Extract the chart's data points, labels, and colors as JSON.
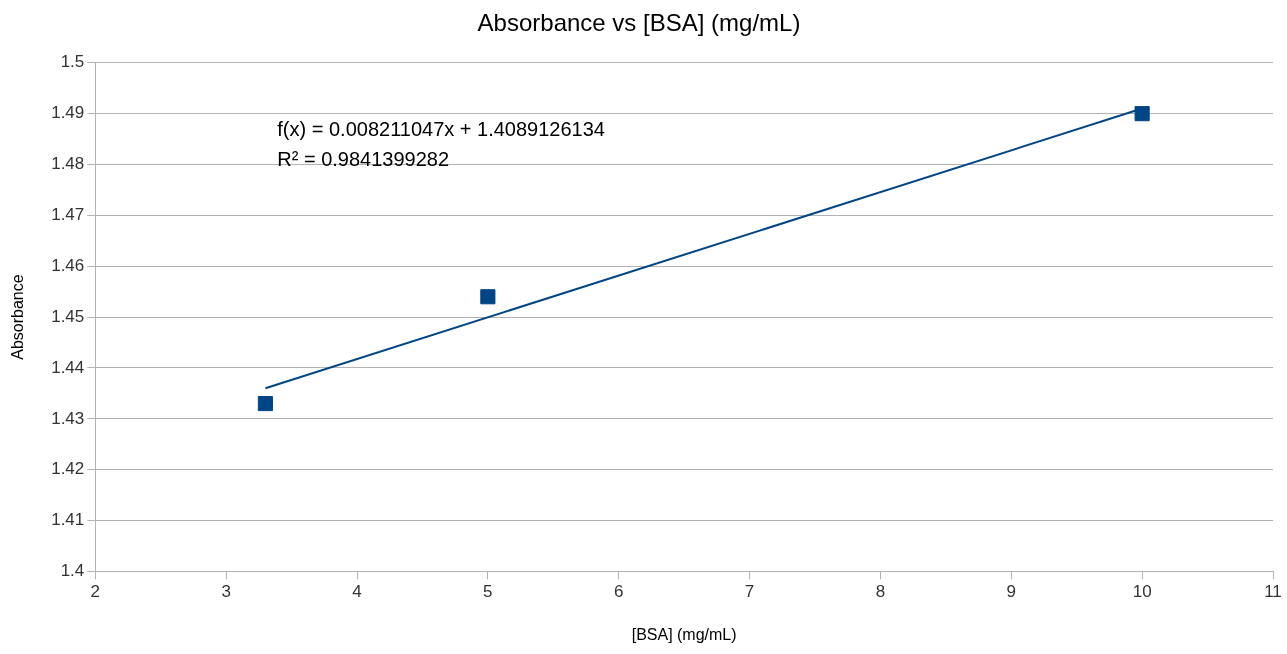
{
  "chart_data": {
    "type": "scatter",
    "title": "Absorbance vs [BSA] (mg/mL)",
    "xlabel": "[BSA] (mg/mL)",
    "ylabel": "Absorbance",
    "annotations": [
      "f(x) = 0.008211047x + 1.4089126134",
      "R² = 0.9841399282"
    ],
    "series": [
      {
        "type": "scatter",
        "color": "#004586",
        "x": [
          3.3,
          5,
          10
        ],
        "values": [
          1.433,
          1.454,
          1.49
        ]
      },
      {
        "type": "line",
        "color": "#004586",
        "marker": "none",
        "x": [
          3.3,
          10
        ],
        "values": [
          1.436,
          1.491
        ]
      }
    ],
    "marker": "square",
    "xlim": [
      2,
      11
    ],
    "xticks": [
      2,
      3,
      4,
      5,
      6,
      7,
      8,
      9,
      10,
      11
    ],
    "ylim": [
      1.4,
      1.5
    ],
    "yticks": [
      1.4,
      1.41,
      1.42,
      1.43,
      1.44,
      1.45,
      1.46,
      1.47,
      1.48,
      1.49,
      1.5
    ],
    "grid": "y",
    "legend": false
  }
}
